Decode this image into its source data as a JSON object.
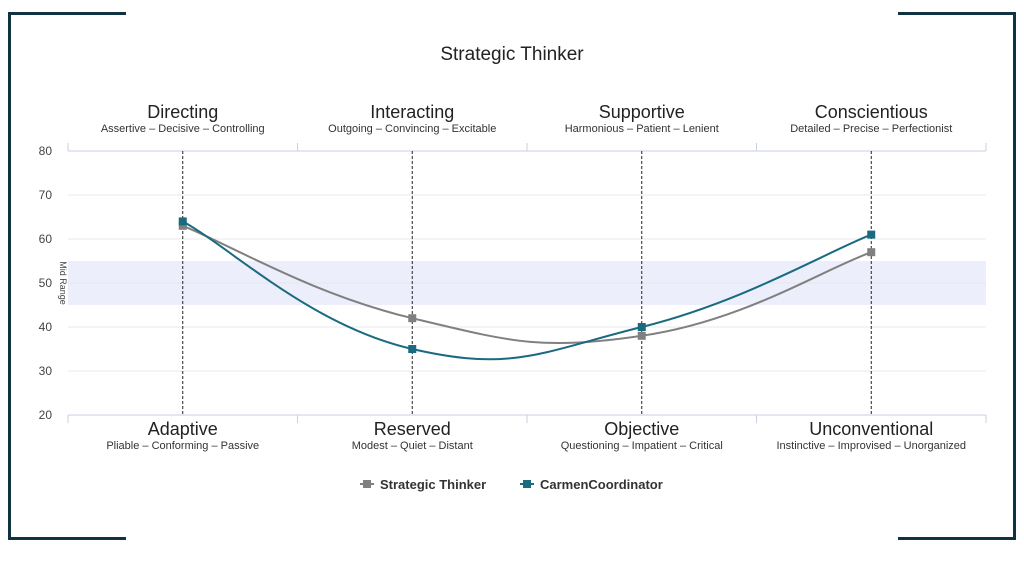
{
  "chart_data": {
    "type": "line",
    "title": "Strategic Thinker",
    "ylim": [
      20,
      80
    ],
    "yticks": [
      20,
      30,
      40,
      50,
      60,
      70,
      80
    ],
    "grid": true,
    "band": {
      "from": 45,
      "to": 55,
      "label": "Mid Range",
      "color": "#eceefb"
    },
    "top_categories": [
      {
        "title": "Directing",
        "sub": "Assertive – Decisive – Controlling"
      },
      {
        "title": "Interacting",
        "sub": "Outgoing – Convincing – Excitable"
      },
      {
        "title": "Supportive",
        "sub": "Harmonious – Patient – Lenient"
      },
      {
        "title": "Conscientious",
        "sub": "Detailed – Precise – Perfectionist"
      }
    ],
    "bottom_categories": [
      {
        "title": "Adaptive",
        "sub": "Pliable – Conforming – Passive"
      },
      {
        "title": "Reserved",
        "sub": "Modest – Quiet – Distant"
      },
      {
        "title": "Objective",
        "sub": "Questioning – Impatient – Critical"
      },
      {
        "title": "Unconventional",
        "sub": "Instinctive – Improvised – Unorganized"
      }
    ],
    "series": [
      {
        "name": "Strategic Thinker",
        "color": "#808080",
        "values": [
          63,
          42,
          38,
          57
        ]
      },
      {
        "name": "CarmenCoordinator",
        "color": "#1a6a80",
        "values": [
          64,
          35,
          40,
          61
        ]
      }
    ],
    "legend_position": "bottom-center"
  }
}
